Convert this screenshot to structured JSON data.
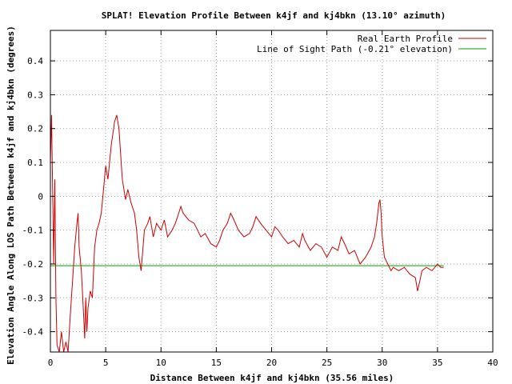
{
  "chart_data": {
    "type": "line",
    "title": "SPLAT! Elevation Profile Between k4jf and kj4bkn (13.10° azimuth)",
    "xlabel": "Distance Between k4jf and kj4bkn (35.56 miles)",
    "ylabel": "Elevation Angle Along LOS Path Between k4jf and kj4bkn (degrees)",
    "xlim": [
      0,
      40
    ],
    "ylim": [
      -0.46,
      0.49
    ],
    "x_ticks": [
      0,
      5,
      10,
      15,
      20,
      25,
      30,
      35,
      40
    ],
    "y_ticks": [
      -0.4,
      -0.3,
      -0.2,
      -0.1,
      0,
      0.1,
      0.2,
      0.3,
      0.4
    ],
    "x_tick_labels": [
      "0",
      "5",
      "10",
      "15",
      "20",
      "25",
      "30",
      "35",
      "40"
    ],
    "y_tick_labels": [
      "-0.4",
      "-0.3",
      "-0.2",
      "-0.1",
      "0",
      "0.1",
      "0.2",
      "0.3",
      "0.4"
    ],
    "grid": true,
    "legend_position": "top-right",
    "series": [
      {
        "name": "Real Earth Profile",
        "color": "#cc0000",
        "points": [
          [
            0.0,
            0.1
          ],
          [
            0.1,
            0.24
          ],
          [
            0.2,
            0.02
          ],
          [
            0.3,
            -0.2
          ],
          [
            0.4,
            0.05
          ],
          [
            0.5,
            -0.3
          ],
          [
            0.6,
            -0.44
          ],
          [
            0.8,
            -0.46
          ],
          [
            1.0,
            -0.4
          ],
          [
            1.2,
            -0.46
          ],
          [
            1.4,
            -0.43
          ],
          [
            1.6,
            -0.46
          ],
          [
            1.8,
            -0.35
          ],
          [
            2.0,
            -0.25
          ],
          [
            2.2,
            -0.15
          ],
          [
            2.4,
            -0.08
          ],
          [
            2.5,
            -0.05
          ],
          [
            2.6,
            -0.15
          ],
          [
            2.8,
            -0.22
          ],
          [
            3.0,
            -0.35
          ],
          [
            3.1,
            -0.42
          ],
          [
            3.2,
            -0.3
          ],
          [
            3.3,
            -0.4
          ],
          [
            3.4,
            -0.33
          ],
          [
            3.6,
            -0.28
          ],
          [
            3.8,
            -0.3
          ],
          [
            4.0,
            -0.15
          ],
          [
            4.2,
            -0.1
          ],
          [
            4.4,
            -0.08
          ],
          [
            4.6,
            -0.05
          ],
          [
            4.8,
            0.02
          ],
          [
            5.0,
            0.09
          ],
          [
            5.2,
            0.05
          ],
          [
            5.5,
            0.15
          ],
          [
            5.8,
            0.22
          ],
          [
            6.0,
            0.24
          ],
          [
            6.2,
            0.2
          ],
          [
            6.5,
            0.05
          ],
          [
            6.8,
            -0.01
          ],
          [
            7.0,
            0.02
          ],
          [
            7.3,
            -0.02
          ],
          [
            7.6,
            -0.05
          ],
          [
            7.8,
            -0.1
          ],
          [
            8.0,
            -0.18
          ],
          [
            8.2,
            -0.22
          ],
          [
            8.5,
            -0.1
          ],
          [
            8.8,
            -0.08
          ],
          [
            9.0,
            -0.06
          ],
          [
            9.3,
            -0.12
          ],
          [
            9.6,
            -0.08
          ],
          [
            10.0,
            -0.1
          ],
          [
            10.3,
            -0.07
          ],
          [
            10.6,
            -0.12
          ],
          [
            11.0,
            -0.1
          ],
          [
            11.3,
            -0.08
          ],
          [
            11.6,
            -0.05
          ],
          [
            11.8,
            -0.03
          ],
          [
            12.0,
            -0.05
          ],
          [
            12.5,
            -0.07
          ],
          [
            13.0,
            -0.08
          ],
          [
            13.3,
            -0.1
          ],
          [
            13.6,
            -0.12
          ],
          [
            14.0,
            -0.11
          ],
          [
            14.5,
            -0.14
          ],
          [
            15.0,
            -0.15
          ],
          [
            15.3,
            -0.13
          ],
          [
            15.6,
            -0.1
          ],
          [
            16.0,
            -0.08
          ],
          [
            16.3,
            -0.05
          ],
          [
            16.6,
            -0.07
          ],
          [
            17.0,
            -0.1
          ],
          [
            17.5,
            -0.12
          ],
          [
            18.0,
            -0.11
          ],
          [
            18.3,
            -0.09
          ],
          [
            18.6,
            -0.06
          ],
          [
            19.0,
            -0.08
          ],
          [
            19.5,
            -0.1
          ],
          [
            20.0,
            -0.12
          ],
          [
            20.3,
            -0.09
          ],
          [
            20.6,
            -0.1
          ],
          [
            21.0,
            -0.12
          ],
          [
            21.5,
            -0.14
          ],
          [
            22.0,
            -0.13
          ],
          [
            22.5,
            -0.15
          ],
          [
            22.8,
            -0.11
          ],
          [
            23.0,
            -0.13
          ],
          [
            23.5,
            -0.16
          ],
          [
            24.0,
            -0.14
          ],
          [
            24.5,
            -0.15
          ],
          [
            25.0,
            -0.18
          ],
          [
            25.5,
            -0.15
          ],
          [
            26.0,
            -0.16
          ],
          [
            26.3,
            -0.12
          ],
          [
            26.6,
            -0.14
          ],
          [
            27.0,
            -0.17
          ],
          [
            27.5,
            -0.16
          ],
          [
            28.0,
            -0.2
          ],
          [
            28.5,
            -0.18
          ],
          [
            29.0,
            -0.15
          ],
          [
            29.3,
            -0.12
          ],
          [
            29.5,
            -0.08
          ],
          [
            29.7,
            -0.02
          ],
          [
            29.8,
            -0.01
          ],
          [
            29.9,
            -0.05
          ],
          [
            30.0,
            -0.12
          ],
          [
            30.2,
            -0.18
          ],
          [
            30.5,
            -0.2
          ],
          [
            30.8,
            -0.22
          ],
          [
            31.0,
            -0.21
          ],
          [
            31.5,
            -0.22
          ],
          [
            32.0,
            -0.21
          ],
          [
            32.5,
            -0.23
          ],
          [
            33.0,
            -0.24
          ],
          [
            33.2,
            -0.28
          ],
          [
            33.4,
            -0.25
          ],
          [
            33.6,
            -0.22
          ],
          [
            34.0,
            -0.21
          ],
          [
            34.5,
            -0.22
          ],
          [
            35.0,
            -0.2
          ],
          [
            35.3,
            -0.21
          ],
          [
            35.56,
            -0.21
          ]
        ]
      },
      {
        "name": "Line of Sight Path (-0.21° elevation)",
        "color": "#00a000",
        "points": [
          [
            0,
            -0.205
          ],
          [
            35.56,
            -0.205
          ]
        ]
      }
    ]
  }
}
